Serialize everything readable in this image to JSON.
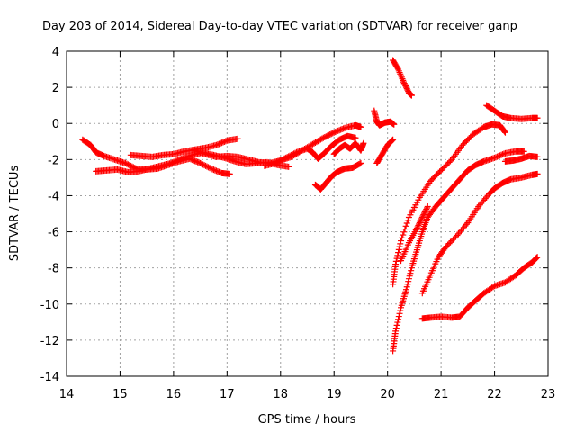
{
  "chart_data": {
    "type": "scatter",
    "title": "Day 203 of 2014, Sidereal Day-to-day VTEC variation (SDTVAR) for receiver ganp",
    "xlabel": "GPS time / hours",
    "ylabel": "SDTVAR / TECUs",
    "xlim": [
      14,
      23
    ],
    "ylim": [
      -14,
      4
    ],
    "xticks": [
      "14",
      "15",
      "16",
      "17",
      "18",
      "19",
      "20",
      "21",
      "22",
      "23"
    ],
    "yticks": [
      "4",
      "2",
      "0",
      "-2",
      "-4",
      "-6",
      "-8",
      "-10",
      "-12",
      "-14"
    ],
    "grid": true,
    "marker": "+",
    "color": "#ff0000",
    "series": [
      {
        "points": [
          [
            14.3,
            -0.9
          ],
          [
            14.45,
            -1.2
          ],
          [
            14.55,
            -1.6
          ],
          [
            14.7,
            -1.8
          ],
          [
            14.9,
            -2.0
          ],
          [
            15.1,
            -2.2
          ],
          [
            15.3,
            -2.5
          ],
          [
            15.5,
            -2.55
          ],
          [
            15.7,
            -2.5
          ],
          [
            15.9,
            -2.3
          ],
          [
            16.1,
            -2.1
          ],
          [
            16.3,
            -1.95
          ],
          [
            16.5,
            -2.2
          ],
          [
            16.7,
            -2.5
          ],
          [
            16.9,
            -2.75
          ],
          [
            17.05,
            -2.8
          ]
        ]
      },
      {
        "points": [
          [
            14.55,
            -2.65
          ],
          [
            14.75,
            -2.6
          ],
          [
            14.95,
            -2.55
          ],
          [
            15.15,
            -2.7
          ],
          [
            15.35,
            -2.65
          ],
          [
            15.55,
            -2.5
          ],
          [
            15.75,
            -2.35
          ],
          [
            15.95,
            -2.2
          ],
          [
            16.15,
            -1.95
          ],
          [
            16.35,
            -1.75
          ],
          [
            16.55,
            -1.6
          ],
          [
            16.75,
            -1.75
          ],
          [
            16.95,
            -1.9
          ],
          [
            17.15,
            -2.1
          ],
          [
            17.35,
            -2.25
          ],
          [
            17.55,
            -2.2
          ],
          [
            17.75,
            -2.15
          ],
          [
            17.95,
            -2.3
          ],
          [
            18.15,
            -2.4
          ]
        ]
      },
      {
        "points": [
          [
            15.2,
            -1.75
          ],
          [
            15.4,
            -1.8
          ],
          [
            15.6,
            -1.85
          ],
          [
            15.8,
            -1.75
          ],
          [
            16.0,
            -1.7
          ],
          [
            16.2,
            -1.55
          ],
          [
            16.4,
            -1.45
          ],
          [
            16.6,
            -1.35
          ],
          [
            16.8,
            -1.2
          ],
          [
            17.0,
            -0.95
          ],
          [
            17.2,
            -0.85
          ]
        ]
      },
      {
        "points": [
          [
            16.4,
            -1.5
          ],
          [
            16.6,
            -1.7
          ],
          [
            16.8,
            -1.85
          ],
          [
            17.0,
            -1.8
          ],
          [
            17.2,
            -1.85
          ],
          [
            17.4,
            -2.0
          ],
          [
            17.6,
            -2.15
          ],
          [
            17.8,
            -2.2
          ],
          [
            18.0,
            -2.05
          ],
          [
            18.2,
            -1.85
          ],
          [
            18.4,
            -1.5
          ],
          [
            18.6,
            -1.15
          ],
          [
            18.8,
            -0.8
          ],
          [
            19.0,
            -0.5
          ],
          [
            19.2,
            -0.25
          ],
          [
            19.4,
            -0.1
          ],
          [
            19.5,
            -0.2
          ]
        ]
      },
      {
        "points": [
          [
            17.7,
            -2.35
          ],
          [
            17.9,
            -2.2
          ],
          [
            18.1,
            -1.9
          ],
          [
            18.3,
            -1.6
          ],
          [
            18.5,
            -1.4
          ],
          [
            18.6,
            -1.6
          ],
          [
            18.7,
            -1.95
          ],
          [
            18.8,
            -1.7
          ],
          [
            18.95,
            -1.25
          ],
          [
            19.1,
            -0.9
          ],
          [
            19.25,
            -0.7
          ],
          [
            19.4,
            -0.8
          ]
        ]
      },
      {
        "points": [
          [
            18.65,
            -3.4
          ],
          [
            18.75,
            -3.65
          ],
          [
            18.85,
            -3.3
          ],
          [
            18.95,
            -2.95
          ],
          [
            19.05,
            -2.7
          ],
          [
            19.2,
            -2.5
          ],
          [
            19.35,
            -2.45
          ],
          [
            19.5,
            -2.2
          ]
        ]
      },
      {
        "points": [
          [
            19.0,
            -1.7
          ],
          [
            19.1,
            -1.4
          ],
          [
            19.2,
            -1.2
          ],
          [
            19.3,
            -1.4
          ],
          [
            19.4,
            -1.1
          ],
          [
            19.5,
            -1.5
          ],
          [
            19.55,
            -1.1
          ]
        ]
      },
      {
        "points": [
          [
            19.75,
            0.7
          ],
          [
            19.8,
            0.1
          ],
          [
            19.85,
            -0.1
          ],
          [
            19.95,
            0.05
          ],
          [
            20.05,
            0.1
          ],
          [
            20.12,
            -0.05
          ]
        ]
      },
      {
        "points": [
          [
            19.8,
            -2.2
          ],
          [
            19.9,
            -1.7
          ],
          [
            20.0,
            -1.2
          ],
          [
            20.1,
            -0.9
          ]
        ]
      },
      {
        "points": [
          [
            20.1,
            3.5
          ],
          [
            20.2,
            3.0
          ],
          [
            20.3,
            2.3
          ],
          [
            20.4,
            1.7
          ],
          [
            20.45,
            1.55
          ]
        ]
      },
      {
        "points": [
          [
            20.1,
            -12.6
          ],
          [
            20.15,
            -11.5
          ],
          [
            20.25,
            -10.2
          ],
          [
            20.35,
            -9.2
          ],
          [
            20.45,
            -8.0
          ],
          [
            20.55,
            -7.0
          ],
          [
            20.65,
            -6.0
          ],
          [
            20.75,
            -5.2
          ],
          [
            20.9,
            -4.6
          ],
          [
            21.05,
            -4.1
          ],
          [
            21.2,
            -3.6
          ],
          [
            21.35,
            -3.1
          ],
          [
            21.5,
            -2.6
          ],
          [
            21.65,
            -2.3
          ],
          [
            21.8,
            -2.1
          ],
          [
            22.0,
            -1.9
          ],
          [
            22.2,
            -1.65
          ],
          [
            22.4,
            -1.55
          ],
          [
            22.55,
            -1.55
          ]
        ]
      },
      {
        "points": [
          [
            20.1,
            -8.9
          ],
          [
            20.15,
            -7.8
          ],
          [
            20.25,
            -6.5
          ],
          [
            20.4,
            -5.2
          ],
          [
            20.6,
            -4.1
          ],
          [
            20.8,
            -3.2
          ],
          [
            21.0,
            -2.6
          ],
          [
            21.2,
            -2.0
          ],
          [
            21.4,
            -1.2
          ],
          [
            21.6,
            -0.6
          ],
          [
            21.8,
            -0.2
          ],
          [
            21.95,
            -0.05
          ],
          [
            22.1,
            -0.1
          ],
          [
            22.2,
            -0.5
          ]
        ]
      },
      {
        "points": [
          [
            20.25,
            -7.6
          ],
          [
            20.4,
            -6.6
          ],
          [
            20.55,
            -5.8
          ],
          [
            20.65,
            -5.2
          ],
          [
            20.75,
            -4.6
          ]
        ]
      },
      {
        "points": [
          [
            20.65,
            -10.8
          ],
          [
            20.8,
            -10.75
          ],
          [
            21.0,
            -10.7
          ],
          [
            21.2,
            -10.75
          ],
          [
            21.35,
            -10.7
          ],
          [
            21.5,
            -10.2
          ],
          [
            21.65,
            -9.8
          ],
          [
            21.8,
            -9.4
          ],
          [
            22.0,
            -9.0
          ],
          [
            22.2,
            -8.8
          ],
          [
            22.4,
            -8.4
          ],
          [
            22.55,
            -8.0
          ],
          [
            22.7,
            -7.7
          ],
          [
            22.8,
            -7.4
          ]
        ]
      },
      {
        "points": [
          [
            20.65,
            -9.4
          ],
          [
            20.8,
            -8.4
          ],
          [
            20.95,
            -7.4
          ],
          [
            21.1,
            -6.8
          ],
          [
            21.3,
            -6.2
          ],
          [
            21.5,
            -5.5
          ],
          [
            21.7,
            -4.6
          ],
          [
            21.9,
            -3.9
          ],
          [
            22.0,
            -3.6
          ],
          [
            22.15,
            -3.3
          ],
          [
            22.3,
            -3.1
          ],
          [
            22.5,
            -3.0
          ],
          [
            22.7,
            -2.85
          ],
          [
            22.8,
            -2.8
          ]
        ]
      },
      {
        "points": [
          [
            21.85,
            1.0
          ],
          [
            22.0,
            0.7
          ],
          [
            22.15,
            0.4
          ],
          [
            22.3,
            0.3
          ],
          [
            22.5,
            0.25
          ],
          [
            22.7,
            0.3
          ],
          [
            22.8,
            0.3
          ]
        ]
      },
      {
        "points": [
          [
            22.2,
            -2.1
          ],
          [
            22.35,
            -2.05
          ],
          [
            22.5,
            -1.95
          ],
          [
            22.65,
            -1.8
          ],
          [
            22.8,
            -1.85
          ]
        ]
      }
    ]
  }
}
